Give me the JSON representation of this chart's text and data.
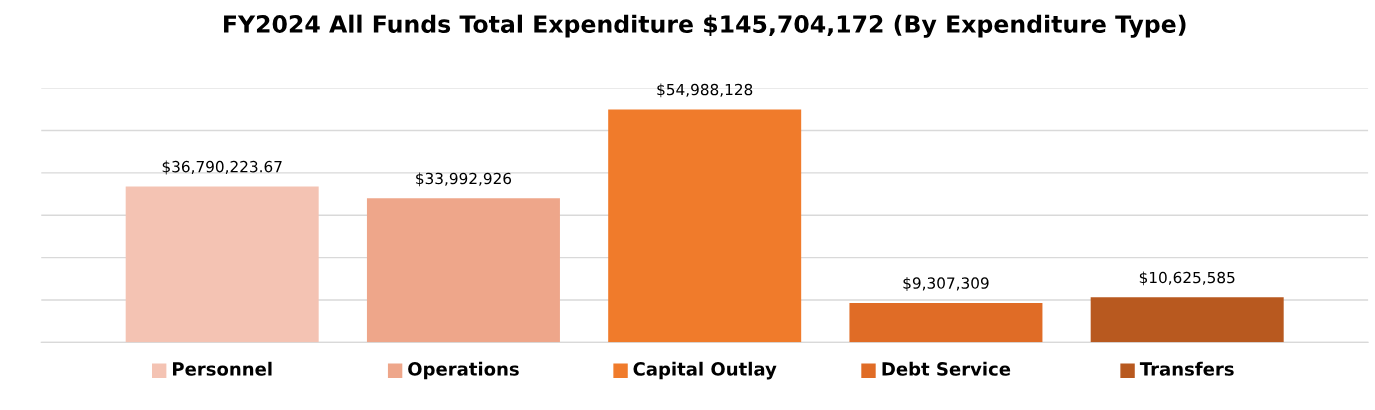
{
  "chart_data": {
    "type": "bar",
    "title": "FY2024 All Funds Total Expenditure $145,704,172 (By Expenditure Type)",
    "categories": [
      "Personnel",
      "Operations",
      "Capital Outlay",
      "Debt Service",
      "Transfers"
    ],
    "values": [
      36790223.67,
      33992926,
      54988128,
      9307309,
      10625585
    ],
    "colors": [
      "#f4c3b3",
      "#eea68a",
      "#f07b2b",
      "#e06c26",
      "#b8591f"
    ],
    "value_labels": [
      "$36,790,223.67",
      "$33,992,926",
      "$54,988,128",
      "$9,307,309",
      "$10,625,585"
    ],
    "ylim": [
      0,
      60000000
    ],
    "yticks": [
      {
        "value": 0,
        "label": null
      },
      {
        "value": 10000000,
        "label": null
      },
      {
        "value": 20000000,
        "label": null
      },
      {
        "value": 30000000,
        "label": null
      },
      {
        "value": 40000000,
        "label": null
      },
      {
        "value": 50000000,
        "label": null
      },
      {
        "value": 60000000,
        "label": null
      }
    ],
    "tick_labels": "x",
    "grid": "y"
  }
}
